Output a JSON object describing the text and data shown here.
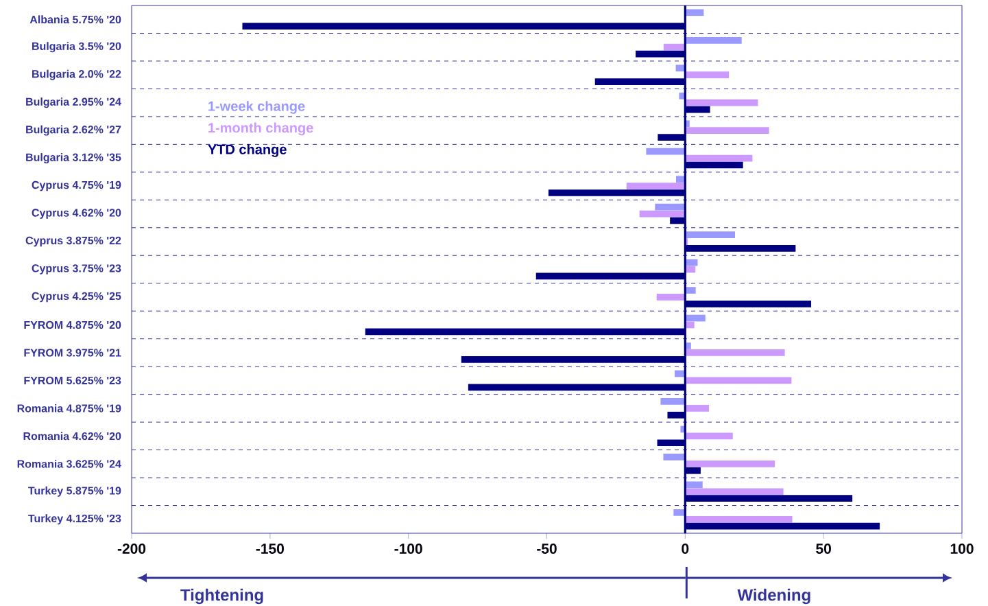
{
  "chart_data": {
    "type": "bar",
    "orientation": "horizontal",
    "categories": [
      "Albania 5.75% '20",
      "Bulgaria 3.5% '20",
      "Bulgaria 2.0% '22",
      "Bulgaria 2.95% '24",
      "Bulgaria 2.62% '27",
      "Bulgaria 3.12% '35",
      "Cyprus 4.75% '19",
      "Cyprus 4.62% '20",
      "Cyprus 3.875% '22",
      "Cyprus 3.75% '23",
      "Cyprus 4.25% '25",
      "FYROM 4.875% '20",
      "FYROM 3.975% '21",
      "FYROM 5.625% '23",
      "Romania 4.875% '19",
      "Romania 4.62% '20",
      "Romania 3.625% '24",
      "Turkey 5.875% '19",
      "Turkey 4.125% '23"
    ],
    "series": [
      {
        "name": "1-week change",
        "color": "#9999ff",
        "values": [
          6.7,
          20.4,
          -3.4,
          -2.2,
          1.6,
          -14.1,
          -3.3,
          -10.9,
          18,
          4.5,
          3.8,
          7.3,
          2.1,
          -3.8,
          -8.9,
          -1.7,
          -7.9,
          6.3,
          -4.2
        ]
      },
      {
        "name": "1-month change",
        "color": "#cc99ff",
        "values": [
          null,
          -7.8,
          15.8,
          26.3,
          30.3,
          24.3,
          -21.2,
          -16.5,
          0.9,
          3.7,
          -10.3,
          3.3,
          36,
          38.4,
          8.6,
          17.2,
          32.4,
          35.5,
          38.7
        ]
      },
      {
        "name": "YTD change",
        "color": "#000080",
        "values": [
          -160,
          -17.9,
          -32.6,
          9,
          -9.9,
          20.9,
          -49.4,
          -5.5,
          39.9,
          -53.9,
          45.5,
          -115.6,
          -80.9,
          -78.4,
          -6.4,
          -10.1,
          5.6,
          60.4,
          70.3
        ]
      }
    ],
    "xlim": [
      -200,
      100
    ],
    "xticks": [
      -200,
      -150,
      -100,
      -50,
      0,
      50,
      100
    ],
    "grid": "y",
    "legend": "top left",
    "ref_lines": [
      {
        "axis": "x",
        "value": 0,
        "color": "#000080"
      }
    ],
    "annotations": [
      "Tightening",
      "Widening"
    ]
  }
}
